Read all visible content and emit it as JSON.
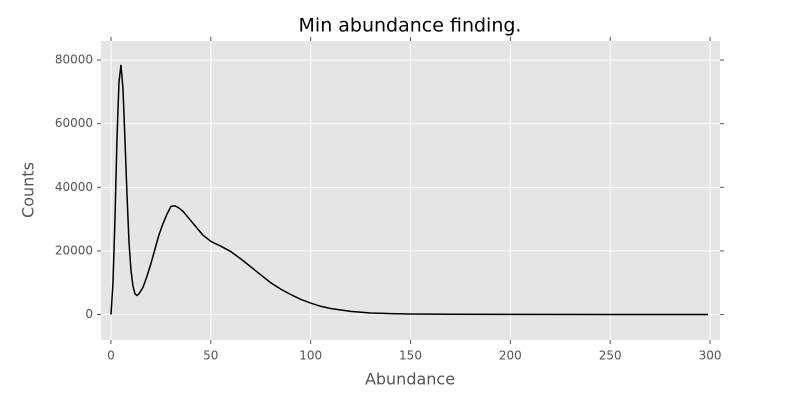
{
  "chart_data": {
    "type": "line",
    "title": "Min abundance finding.",
    "xlabel": "Abundance",
    "ylabel": "Counts",
    "x": [
      0,
      1,
      2,
      3,
      4,
      5,
      6,
      7,
      8,
      9,
      10,
      11,
      12,
      13,
      14,
      16,
      18,
      20,
      22,
      24,
      26,
      28,
      30,
      32,
      34,
      36,
      38,
      40,
      42,
      44,
      46,
      48,
      50,
      55,
      60,
      65,
      70,
      75,
      80,
      85,
      90,
      95,
      100,
      105,
      110,
      120,
      130,
      140,
      150,
      170,
      200,
      250,
      299
    ],
    "values": [
      0,
      10000,
      30000,
      55000,
      73000,
      78500,
      71000,
      55000,
      38000,
      23000,
      14000,
      9000,
      6500,
      6000,
      6500,
      8500,
      12000,
      16000,
      20500,
      25000,
      28500,
      31500,
      34000,
      34200,
      33500,
      32500,
      31000,
      29500,
      28000,
      26500,
      25000,
      24000,
      23000,
      21500,
      19800,
      17500,
      15000,
      12500,
      10000,
      8000,
      6300,
      4800,
      3600,
      2600,
      1900,
      1000,
      500,
      300,
      180,
      100,
      50,
      20,
      0
    ],
    "color": "#000000",
    "xlim": [
      -5,
      305
    ],
    "ylim": [
      -8000,
      86000
    ],
    "xticks": [
      0,
      50,
      100,
      150,
      200,
      250,
      300
    ],
    "yticks": [
      0,
      20000,
      40000,
      60000,
      80000
    ],
    "grid": true
  }
}
